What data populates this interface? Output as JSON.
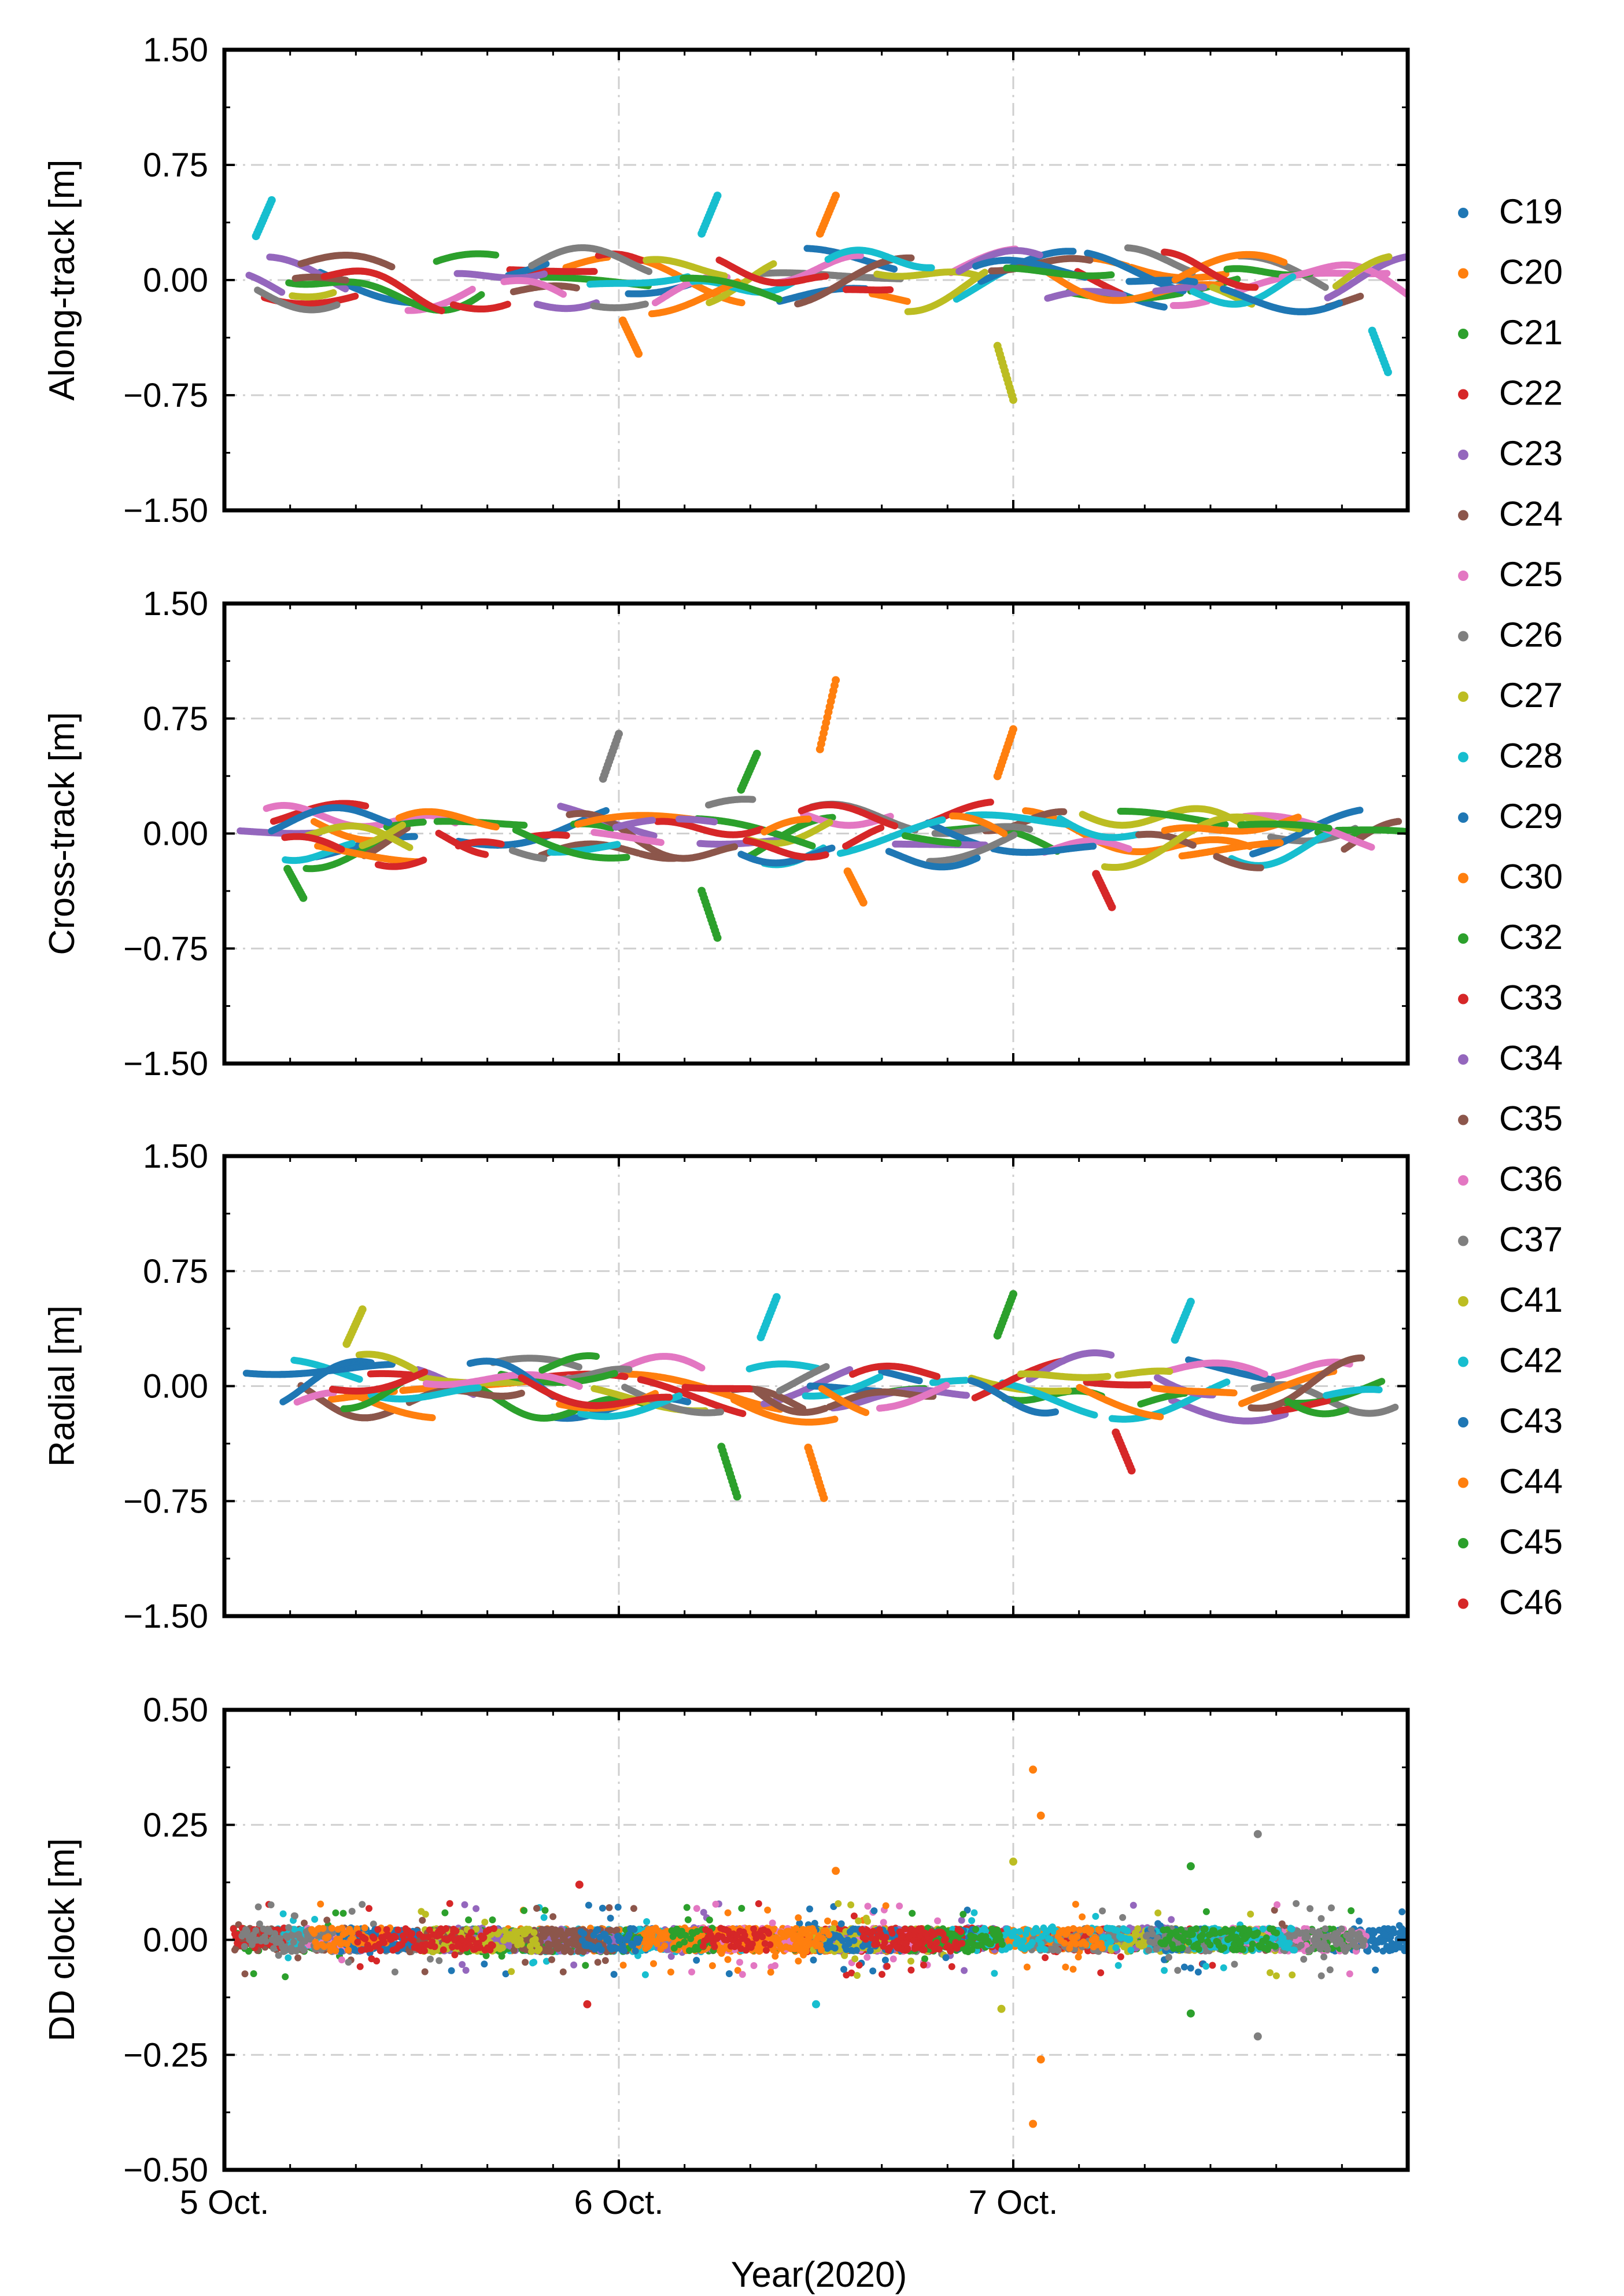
{
  "figure": {
    "x_axis_title": "Year(2020)",
    "x_tick_labels": [
      "5 Oct.",
      "6 Oct.",
      "7 Oct."
    ],
    "x_range_days": [
      0,
      3
    ]
  },
  "legend": {
    "entries": [
      {
        "label": "C19",
        "color": "#1f77b4"
      },
      {
        "label": "C20",
        "color": "#ff7f0e"
      },
      {
        "label": "C21",
        "color": "#2ca02c"
      },
      {
        "label": "C22",
        "color": "#d62728"
      },
      {
        "label": "C23",
        "color": "#9467bd"
      },
      {
        "label": "C24",
        "color": "#8c564b"
      },
      {
        "label": "C25",
        "color": "#e377c2"
      },
      {
        "label": "C26",
        "color": "#7f7f7f"
      },
      {
        "label": "C27",
        "color": "#bcbd22"
      },
      {
        "label": "C28",
        "color": "#17becf"
      },
      {
        "label": "C29",
        "color": "#1f77b4"
      },
      {
        "label": "C30",
        "color": "#ff7f0e"
      },
      {
        "label": "C32",
        "color": "#2ca02c"
      },
      {
        "label": "C33",
        "color": "#d62728"
      },
      {
        "label": "C34",
        "color": "#9467bd"
      },
      {
        "label": "C35",
        "color": "#8c564b"
      },
      {
        "label": "C36",
        "color": "#e377c2"
      },
      {
        "label": "C37",
        "color": "#7f7f7f"
      },
      {
        "label": "C41",
        "color": "#bcbd22"
      },
      {
        "label": "C42",
        "color": "#17becf"
      },
      {
        "label": "C43",
        "color": "#1f77b4"
      },
      {
        "label": "C44",
        "color": "#ff7f0e"
      },
      {
        "label": "C45",
        "color": "#2ca02c"
      },
      {
        "label": "C46",
        "color": "#d62728"
      }
    ]
  },
  "chart_data": [
    {
      "type": "scatter",
      "ylabel": "Along-track [m]",
      "ylim": [
        -1.5,
        1.5
      ],
      "y_ticks": [
        1.5,
        0.75,
        0.0,
        -0.75,
        -1.5
      ],
      "y_tick_labels": [
        "1.50",
        "0.75",
        "0.00",
        "−0.75",
        "−1.50"
      ],
      "x_ticks_days": [
        0,
        1,
        2
      ],
      "amplitude_m": 0.17,
      "seed": 11,
      "extremes": [
        {
          "series": "C28",
          "day": 0.12,
          "y": 0.52
        },
        {
          "series": "C41",
          "day": 2.0,
          "y": -0.78
        },
        {
          "series": "C20",
          "day": 1.05,
          "y": -0.48
        },
        {
          "series": "C42",
          "day": 2.95,
          "y": -0.6
        },
        {
          "series": "C20",
          "day": 1.55,
          "y": 0.55
        },
        {
          "series": "C28",
          "day": 1.25,
          "y": 0.55
        }
      ]
    },
    {
      "type": "scatter",
      "ylabel": "Cross-track [m]",
      "ylim": [
        -1.5,
        1.5
      ],
      "y_ticks": [
        1.5,
        0.75,
        0.0,
        -0.75,
        -1.5
      ],
      "y_tick_labels": [
        "1.50",
        "0.75",
        "0.00",
        "−0.75",
        "−1.50"
      ],
      "x_ticks_days": [
        0,
        1,
        2
      ],
      "amplitude_m": 0.17,
      "seed": 23,
      "extremes": [
        {
          "series": "C30",
          "day": 1.55,
          "y": 1.0
        },
        {
          "series": "C30",
          "day": 1.62,
          "y": -0.45
        },
        {
          "series": "C26",
          "day": 1.0,
          "y": 0.65
        },
        {
          "series": "C30",
          "day": 2.0,
          "y": 0.68
        },
        {
          "series": "C32",
          "day": 1.25,
          "y": -0.68
        },
        {
          "series": "C33",
          "day": 2.25,
          "y": -0.48
        },
        {
          "series": "C21",
          "day": 0.2,
          "y": -0.42
        },
        {
          "series": "C32",
          "day": 1.35,
          "y": 0.52
        }
      ]
    },
    {
      "type": "scatter",
      "ylabel": "Radial [m]",
      "ylim": [
        -1.5,
        1.5
      ],
      "y_ticks": [
        1.5,
        0.75,
        0.0,
        -0.75,
        -1.5
      ],
      "y_tick_labels": [
        "1.50",
        "0.75",
        "0.00",
        "−0.75",
        "−1.50"
      ],
      "x_ticks_days": [
        0,
        1,
        2
      ],
      "amplitude_m": 0.17,
      "seed": 37,
      "extremes": [
        {
          "series": "C28",
          "day": 1.4,
          "y": 0.58
        },
        {
          "series": "C45",
          "day": 1.3,
          "y": -0.72
        },
        {
          "series": "C44",
          "day": 1.52,
          "y": -0.73
        },
        {
          "series": "C27",
          "day": 0.35,
          "y": 0.5
        },
        {
          "series": "C45",
          "day": 2.0,
          "y": 0.6
        },
        {
          "series": "C42",
          "day": 2.45,
          "y": 0.55
        },
        {
          "series": "C46",
          "day": 2.3,
          "y": -0.55
        }
      ]
    },
    {
      "type": "scatter",
      "ylabel": "DD clock [m]",
      "ylim": [
        -0.5,
        0.5
      ],
      "y_ticks": [
        0.5,
        0.25,
        0.0,
        -0.25,
        -0.5
      ],
      "y_tick_labels": [
        "0.50",
        "0.25",
        "0.00",
        "−0.25",
        "−0.50"
      ],
      "x_ticks_days": [
        0,
        1,
        2
      ],
      "amplitude_m": 0.025,
      "seed": 51,
      "extremes": [
        {
          "series": "C44",
          "day": 2.05,
          "y": 0.37
        },
        {
          "series": "C44",
          "day": 2.05,
          "y": -0.4
        },
        {
          "series": "C44",
          "day": 2.07,
          "y": 0.27
        },
        {
          "series": "C44",
          "day": 2.07,
          "y": -0.26
        },
        {
          "series": "C37",
          "day": 2.62,
          "y": 0.23
        },
        {
          "series": "C37",
          "day": 2.62,
          "y": -0.21
        },
        {
          "series": "C45",
          "day": 2.45,
          "y": 0.16
        },
        {
          "series": "C45",
          "day": 2.45,
          "y": -0.16
        },
        {
          "series": "C41",
          "day": 2.0,
          "y": 0.17
        },
        {
          "series": "C41",
          "day": 1.97,
          "y": -0.15
        },
        {
          "series": "C22",
          "day": 0.9,
          "y": 0.12
        },
        {
          "series": "C22",
          "day": 0.92,
          "y": -0.14
        },
        {
          "series": "C42",
          "day": 1.5,
          "y": -0.14
        },
        {
          "series": "C30",
          "day": 1.55,
          "y": 0.15
        }
      ]
    }
  ]
}
